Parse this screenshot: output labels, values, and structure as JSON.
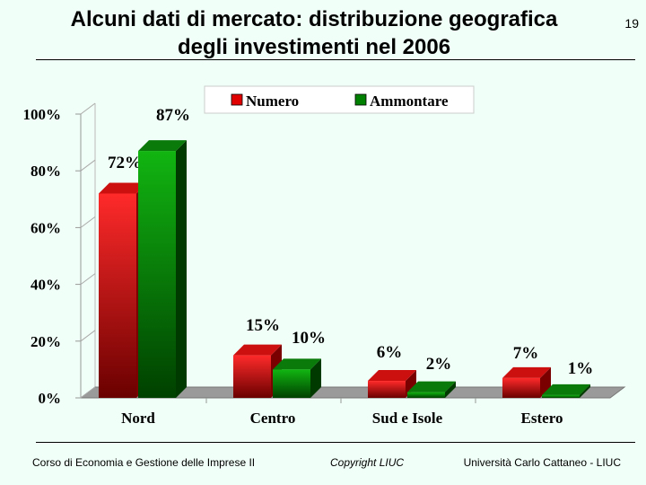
{
  "slide": {
    "title_line1": "Alcuni dati di mercato: distribuzione geografica",
    "title_line2": "degli investimenti nel 2006",
    "page_number": "19"
  },
  "footer": {
    "left": "Corso di Economia e Gestione delle Imprese II",
    "center": "Copyright LIUC",
    "right": "Università Carlo Cattaneo - LIUC"
  },
  "chart_data": {
    "type": "bar",
    "categories": [
      "Nord",
      "Centro",
      "Sud e Isole",
      "Estero"
    ],
    "series": [
      {
        "name": "Numero",
        "values": [
          72,
          15,
          6,
          7
        ],
        "color": "#e00000",
        "labels": [
          "72%",
          "15%",
          "6%",
          "7%"
        ]
      },
      {
        "name": "Ammontare",
        "values": [
          87,
          10,
          2,
          1
        ],
        "color": "#008000",
        "labels": [
          "87%",
          "10%",
          "2%",
          "1%"
        ]
      }
    ],
    "y_ticks": [
      0,
      20,
      40,
      60,
      80,
      100
    ],
    "y_tick_labels": [
      "0%",
      "20%",
      "40%",
      "60%",
      "80%",
      "100%"
    ],
    "ylim": [
      0,
      100
    ],
    "grid": false,
    "legend_position": "top",
    "style": "3d-bar"
  }
}
